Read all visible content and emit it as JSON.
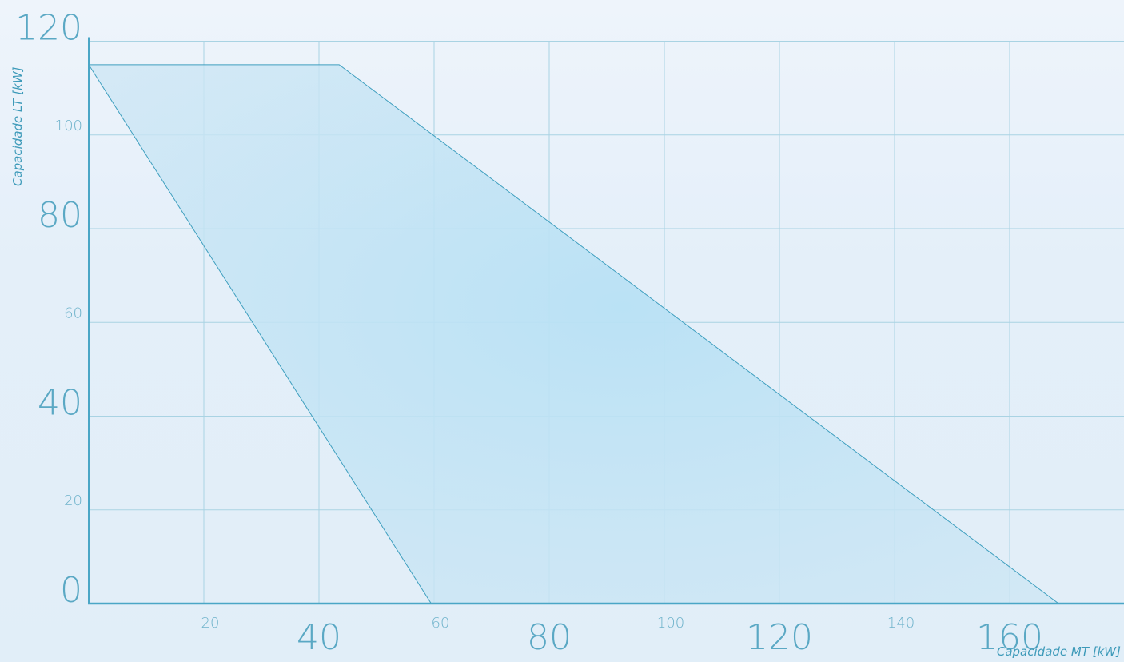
{
  "chart_data": {
    "type": "area",
    "xlabel": "Capacidade MT [kW]",
    "ylabel": "Capacidade LT [kW]",
    "xlim": [
      0,
      175
    ],
    "ylim": [
      0,
      120
    ],
    "grid": true,
    "x_ticks": [
      {
        "value": 20,
        "label": "20",
        "style": "minor"
      },
      {
        "value": 40,
        "label": "40",
        "style": "major"
      },
      {
        "value": 60,
        "label": "60",
        "style": "minor"
      },
      {
        "value": 80,
        "label": "80",
        "style": "major"
      },
      {
        "value": 100,
        "label": "100",
        "style": "minor"
      },
      {
        "value": 120,
        "label": "120",
        "style": "major"
      },
      {
        "value": 140,
        "label": "140",
        "style": "minor"
      },
      {
        "value": 160,
        "label": "160",
        "style": "major"
      }
    ],
    "y_ticks": [
      {
        "value": 0,
        "label": "0",
        "style": "major"
      },
      {
        "value": 20,
        "label": "20",
        "style": "minor"
      },
      {
        "value": 40,
        "label": "40",
        "style": "major"
      },
      {
        "value": 60,
        "label": "60",
        "style": "minor"
      },
      {
        "value": 80,
        "label": "80",
        "style": "major"
      },
      {
        "value": 100,
        "label": "100",
        "style": "minor"
      },
      {
        "value": 120,
        "label": "120",
        "style": "major"
      }
    ],
    "series": [
      {
        "type": "polygon",
        "points": [
          {
            "x": 0,
            "y": 115
          },
          {
            "x": 43.5,
            "y": 115
          },
          {
            "x": 168.5,
            "y": 0
          },
          {
            "x": 59.5,
            "y": 0
          }
        ]
      }
    ],
    "colors": {
      "fill": "#bfe3f5",
      "line": "#3f9fbf",
      "grid": "#a9d3e3",
      "axis": "#4aa6c6",
      "tick_text": "#6fb3cb",
      "axis_title": "#3d9ab9"
    }
  }
}
